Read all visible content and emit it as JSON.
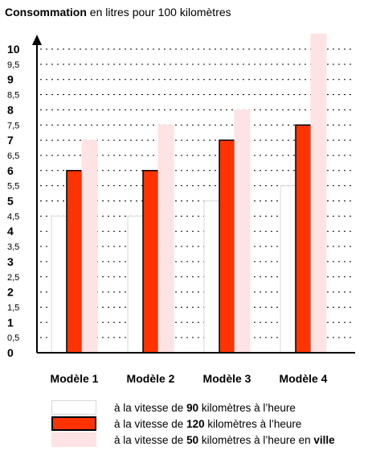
{
  "title": {
    "bold": "Consommation",
    "rest": " en litres pour 100 kilomètres"
  },
  "colors": {
    "s90": "#ffffff",
    "s90_border": "#d8d8d8",
    "s120": "#ff3300",
    "s120_border": "#000000",
    "s50": "#fde3e3",
    "s50_border": "#fde3e3",
    "grid": "#000000"
  },
  "legend": [
    {
      "pre": "à la vitesse de ",
      "bold": "90",
      "post": " kilomètres à l’heure",
      "bold2": ""
    },
    {
      "pre": "à la vitesse de ",
      "bold": "120",
      "post": " kilomètres à l’heure",
      "bold2": ""
    },
    {
      "pre": "à la vitesse de ",
      "bold": "50",
      "post": " kilomètres à l’heure en ",
      "bold2": "ville"
    }
  ],
  "chart_data": {
    "type": "bar",
    "categories": [
      "Modèle 1",
      "Modèle 2",
      "Modèle 3",
      "Modèle 4"
    ],
    "series": [
      {
        "name": "à la vitesse de 90 kilomètres à l’heure",
        "values": [
          4.5,
          4.5,
          5,
          5.5
        ]
      },
      {
        "name": "à la vitesse de 120 kilomètres à l’heure",
        "values": [
          6,
          6,
          7,
          7.5
        ]
      },
      {
        "name": "à la vitesse de 50 kilomètres à l’heure en ville",
        "values": [
          7,
          7.5,
          8,
          10.5
        ]
      }
    ],
    "ylim": [
      0,
      10.5
    ],
    "yticks": [
      {
        "value": 0,
        "label": "0",
        "major": true
      },
      {
        "value": 0.5,
        "label": "0,5",
        "major": false
      },
      {
        "value": 1,
        "label": "1",
        "major": true
      },
      {
        "value": 1.5,
        "label": "1,5",
        "major": false
      },
      {
        "value": 2,
        "label": "2",
        "major": true
      },
      {
        "value": 2.5,
        "label": "2,5",
        "major": false
      },
      {
        "value": 3,
        "label": "3",
        "major": true
      },
      {
        "value": 3.5,
        "label": "3,5",
        "major": false
      },
      {
        "value": 4,
        "label": "4",
        "major": true
      },
      {
        "value": 4.5,
        "label": "4,5",
        "major": false
      },
      {
        "value": 5,
        "label": "5",
        "major": true
      },
      {
        "value": 5.5,
        "label": "5,5",
        "major": false
      },
      {
        "value": 6,
        "label": "6",
        "major": true
      },
      {
        "value": 6.5,
        "label": "6,5",
        "major": false
      },
      {
        "value": 7,
        "label": "7",
        "major": true
      },
      {
        "value": 7.5,
        "label": "7,5",
        "major": false
      },
      {
        "value": 8,
        "label": "8",
        "major": true
      },
      {
        "value": 8.5,
        "label": "8,5",
        "major": false
      },
      {
        "value": 9,
        "label": "9",
        "major": true
      },
      {
        "value": 9.5,
        "label": "9,5",
        "major": false
      },
      {
        "value": 10,
        "label": "10",
        "major": true
      }
    ],
    "grid": true,
    "legend_position": "bottom"
  }
}
